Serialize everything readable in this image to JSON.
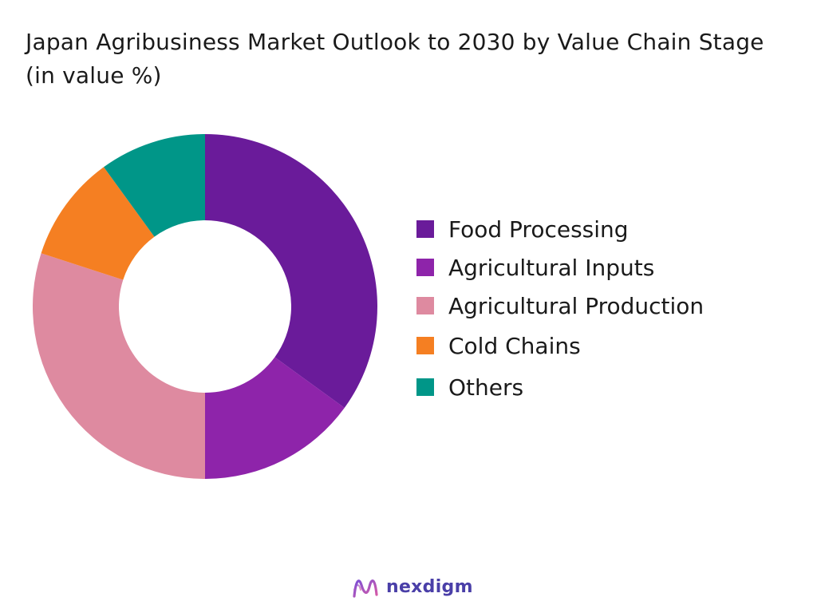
{
  "chart_data": {
    "type": "pie",
    "donut": true,
    "title": "Japan Agribusiness Market Outlook to 2030 by Value Chain Stage (in value %)",
    "categories": [
      "Food Processing",
      "Agricultural Inputs",
      "Agricultural Production",
      "Cold Chains",
      "Others"
    ],
    "values": [
      35,
      15,
      30,
      10,
      10
    ],
    "colors": [
      "#6a1b9a",
      "#8e24aa",
      "#de8aa0",
      "#f57f22",
      "#009688"
    ],
    "legend_position": "right"
  },
  "brand": {
    "name": "nexdigm",
    "mark_colors": [
      "#7b4fd6",
      "#d85ba6"
    ]
  }
}
